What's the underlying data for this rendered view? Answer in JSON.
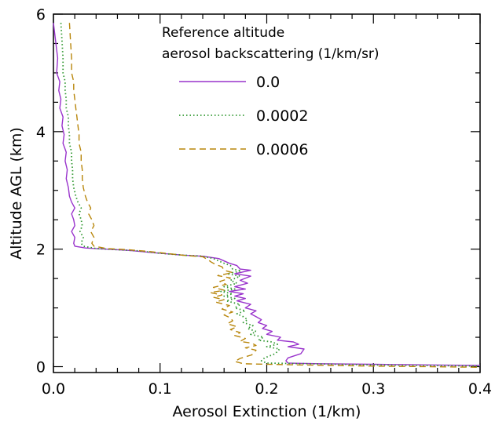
{
  "chart_data": {
    "type": "line",
    "xlabel": "Aerosol Extinction (1/km)",
    "ylabel": "Altitude AGL (km)",
    "xlim": [
      0,
      0.4
    ],
    "ylim": [
      -0.1,
      6
    ],
    "xticks": [
      0.0,
      0.1,
      0.2,
      0.3,
      0.4
    ],
    "xtick_labels": [
      "0.0",
      "0.1",
      "0.2",
      "0.3",
      "0.4"
    ],
    "yticks": [
      0,
      2,
      4,
      6
    ],
    "ytick_labels": [
      "0",
      "2",
      "4",
      "6"
    ],
    "grid": false,
    "legend": {
      "title_lines": [
        "Reference altitude",
        "aerosol backscattering (1/km/sr)"
      ],
      "placement": "top-right"
    },
    "series": [
      {
        "name": "0.0",
        "color": "#9933cc",
        "dash": "solid",
        "points": [
          [
            0.0,
            5.85
          ],
          [
            0.002,
            5.55
          ],
          [
            0.004,
            5.25
          ],
          [
            0.003,
            5.0
          ],
          [
            0.006,
            4.85
          ],
          [
            0.005,
            4.7
          ],
          [
            0.007,
            4.55
          ],
          [
            0.006,
            4.4
          ],
          [
            0.009,
            4.25
          ],
          [
            0.008,
            4.1
          ],
          [
            0.01,
            3.95
          ],
          [
            0.009,
            3.8
          ],
          [
            0.012,
            3.65
          ],
          [
            0.011,
            3.5
          ],
          [
            0.013,
            3.35
          ],
          [
            0.012,
            3.2
          ],
          [
            0.014,
            3.05
          ],
          [
            0.015,
            2.9
          ],
          [
            0.017,
            2.8
          ],
          [
            0.02,
            2.7
          ],
          [
            0.017,
            2.6
          ],
          [
            0.019,
            2.5
          ],
          [
            0.02,
            2.4
          ],
          [
            0.017,
            2.3
          ],
          [
            0.02,
            2.2
          ],
          [
            0.019,
            2.1
          ],
          [
            0.02,
            2.05
          ],
          [
            0.03,
            2.02
          ],
          [
            0.05,
            2.0
          ],
          [
            0.07,
            1.98
          ],
          [
            0.1,
            1.93
          ],
          [
            0.12,
            1.9
          ],
          [
            0.14,
            1.88
          ],
          [
            0.155,
            1.84
          ],
          [
            0.16,
            1.8
          ],
          [
            0.165,
            1.76
          ],
          [
            0.172,
            1.72
          ],
          [
            0.175,
            1.66
          ],
          [
            0.185,
            1.64
          ],
          [
            0.17,
            1.58
          ],
          [
            0.185,
            1.54
          ],
          [
            0.175,
            1.47
          ],
          [
            0.182,
            1.42
          ],
          [
            0.17,
            1.36
          ],
          [
            0.18,
            1.32
          ],
          [
            0.165,
            1.28
          ],
          [
            0.178,
            1.24
          ],
          [
            0.17,
            1.2
          ],
          [
            0.18,
            1.16
          ],
          [
            0.172,
            1.12
          ],
          [
            0.185,
            1.06
          ],
          [
            0.18,
            1.0
          ],
          [
            0.19,
            0.95
          ],
          [
            0.185,
            0.9
          ],
          [
            0.19,
            0.85
          ],
          [
            0.195,
            0.8
          ],
          [
            0.192,
            0.75
          ],
          [
            0.2,
            0.7
          ],
          [
            0.196,
            0.65
          ],
          [
            0.205,
            0.6
          ],
          [
            0.2,
            0.55
          ],
          [
            0.213,
            0.5
          ],
          [
            0.21,
            0.45
          ],
          [
            0.225,
            0.42
          ],
          [
            0.23,
            0.38
          ],
          [
            0.22,
            0.34
          ],
          [
            0.235,
            0.3
          ],
          [
            0.232,
            0.22
          ],
          [
            0.22,
            0.15
          ],
          [
            0.218,
            0.1
          ],
          [
            0.22,
            0.06
          ],
          [
            0.25,
            0.05
          ],
          [
            0.3,
            0.04
          ],
          [
            0.35,
            0.03
          ],
          [
            0.4,
            0.02
          ]
        ]
      },
      {
        "name": "0.0002",
        "color": "#339933",
        "dash": "dotted",
        "points": [
          [
            0.007,
            5.85
          ],
          [
            0.008,
            5.55
          ],
          [
            0.009,
            5.25
          ],
          [
            0.009,
            5.0
          ],
          [
            0.011,
            4.85
          ],
          [
            0.011,
            4.7
          ],
          [
            0.012,
            4.55
          ],
          [
            0.012,
            4.4
          ],
          [
            0.014,
            4.25
          ],
          [
            0.014,
            4.1
          ],
          [
            0.015,
            3.95
          ],
          [
            0.015,
            3.8
          ],
          [
            0.017,
            3.65
          ],
          [
            0.017,
            3.5
          ],
          [
            0.018,
            3.35
          ],
          [
            0.018,
            3.2
          ],
          [
            0.019,
            3.05
          ],
          [
            0.021,
            2.9
          ],
          [
            0.023,
            2.8
          ],
          [
            0.026,
            2.7
          ],
          [
            0.024,
            2.6
          ],
          [
            0.026,
            2.5
          ],
          [
            0.027,
            2.4
          ],
          [
            0.025,
            2.3
          ],
          [
            0.028,
            2.2
          ],
          [
            0.026,
            2.1
          ],
          [
            0.028,
            2.05
          ],
          [
            0.04,
            2.01
          ],
          [
            0.06,
            1.99
          ],
          [
            0.08,
            1.97
          ],
          [
            0.1,
            1.93
          ],
          [
            0.12,
            1.9
          ],
          [
            0.14,
            1.88
          ],
          [
            0.15,
            1.84
          ],
          [
            0.155,
            1.8
          ],
          [
            0.16,
            1.76
          ],
          [
            0.166,
            1.72
          ],
          [
            0.168,
            1.66
          ],
          [
            0.176,
            1.63
          ],
          [
            0.163,
            1.58
          ],
          [
            0.175,
            1.54
          ],
          [
            0.166,
            1.47
          ],
          [
            0.172,
            1.42
          ],
          [
            0.16,
            1.36
          ],
          [
            0.17,
            1.32
          ],
          [
            0.157,
            1.28
          ],
          [
            0.168,
            1.24
          ],
          [
            0.16,
            1.2
          ],
          [
            0.17,
            1.16
          ],
          [
            0.162,
            1.12
          ],
          [
            0.175,
            1.06
          ],
          [
            0.17,
            1.0
          ],
          [
            0.18,
            0.95
          ],
          [
            0.172,
            0.9
          ],
          [
            0.178,
            0.85
          ],
          [
            0.182,
            0.8
          ],
          [
            0.178,
            0.75
          ],
          [
            0.187,
            0.7
          ],
          [
            0.182,
            0.65
          ],
          [
            0.19,
            0.6
          ],
          [
            0.185,
            0.55
          ],
          [
            0.197,
            0.5
          ],
          [
            0.192,
            0.45
          ],
          [
            0.205,
            0.42
          ],
          [
            0.21,
            0.38
          ],
          [
            0.2,
            0.34
          ],
          [
            0.212,
            0.3
          ],
          [
            0.208,
            0.22
          ],
          [
            0.198,
            0.15
          ],
          [
            0.195,
            0.1
          ],
          [
            0.2,
            0.06
          ],
          [
            0.24,
            0.05
          ],
          [
            0.3,
            0.03
          ],
          [
            0.35,
            0.02
          ],
          [
            0.4,
            0.01
          ]
        ]
      },
      {
        "name": "0.0006",
        "color": "#b8860b",
        "dash": "dashed",
        "points": [
          [
            0.015,
            5.85
          ],
          [
            0.016,
            5.55
          ],
          [
            0.017,
            5.25
          ],
          [
            0.017,
            5.0
          ],
          [
            0.019,
            4.85
          ],
          [
            0.019,
            4.7
          ],
          [
            0.02,
            4.55
          ],
          [
            0.021,
            4.4
          ],
          [
            0.022,
            4.25
          ],
          [
            0.023,
            4.1
          ],
          [
            0.024,
            3.95
          ],
          [
            0.024,
            3.8
          ],
          [
            0.026,
            3.65
          ],
          [
            0.026,
            3.5
          ],
          [
            0.027,
            3.35
          ],
          [
            0.027,
            3.2
          ],
          [
            0.028,
            3.05
          ],
          [
            0.03,
            2.9
          ],
          [
            0.032,
            2.8
          ],
          [
            0.035,
            2.7
          ],
          [
            0.033,
            2.6
          ],
          [
            0.036,
            2.5
          ],
          [
            0.038,
            2.4
          ],
          [
            0.035,
            2.3
          ],
          [
            0.038,
            2.2
          ],
          [
            0.036,
            2.1
          ],
          [
            0.038,
            2.05
          ],
          [
            0.05,
            2.01
          ],
          [
            0.07,
            1.99
          ],
          [
            0.09,
            1.96
          ],
          [
            0.11,
            1.92
          ],
          [
            0.125,
            1.89
          ],
          [
            0.14,
            1.87
          ],
          [
            0.145,
            1.82
          ],
          [
            0.148,
            1.78
          ],
          [
            0.152,
            1.74
          ],
          [
            0.158,
            1.7
          ],
          [
            0.16,
            1.64
          ],
          [
            0.168,
            1.6
          ],
          [
            0.154,
            1.55
          ],
          [
            0.166,
            1.51
          ],
          [
            0.156,
            1.45
          ],
          [
            0.162,
            1.4
          ],
          [
            0.15,
            1.35
          ],
          [
            0.16,
            1.3
          ],
          [
            0.147,
            1.26
          ],
          [
            0.158,
            1.22
          ],
          [
            0.15,
            1.18
          ],
          [
            0.16,
            1.14
          ],
          [
            0.152,
            1.1
          ],
          [
            0.165,
            1.04
          ],
          [
            0.158,
            0.98
          ],
          [
            0.168,
            0.93
          ],
          [
            0.16,
            0.88
          ],
          [
            0.166,
            0.83
          ],
          [
            0.168,
            0.78
          ],
          [
            0.163,
            0.73
          ],
          [
            0.172,
            0.68
          ],
          [
            0.166,
            0.63
          ],
          [
            0.175,
            0.58
          ],
          [
            0.17,
            0.53
          ],
          [
            0.18,
            0.48
          ],
          [
            0.175,
            0.43
          ],
          [
            0.186,
            0.4
          ],
          [
            0.19,
            0.36
          ],
          [
            0.18,
            0.32
          ],
          [
            0.19,
            0.28
          ],
          [
            0.186,
            0.2
          ],
          [
            0.175,
            0.14
          ],
          [
            0.17,
            0.09
          ],
          [
            0.178,
            0.05
          ],
          [
            0.23,
            0.03
          ],
          [
            0.3,
            0.01
          ],
          [
            0.35,
            0.0
          ],
          [
            0.4,
            -0.01
          ]
        ]
      }
    ]
  }
}
